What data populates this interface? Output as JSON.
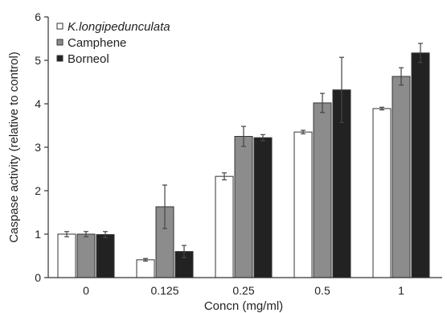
{
  "chart_data": {
    "type": "bar",
    "xlabel": "Concn (mg/ml)",
    "ylabel": "Caspase activity (relative to control)",
    "categories": [
      "0",
      "0.125",
      "0.25",
      "0.5",
      "1"
    ],
    "ylim": [
      0,
      6
    ],
    "yticks": [
      "0",
      "1",
      "2",
      "3",
      "4",
      "5",
      "6"
    ],
    "legend_position": "top-left",
    "grid": false,
    "series": [
      {
        "name": "K.longipedunculata",
        "italic": true,
        "color": "#ffffff",
        "values": [
          1.0,
          0.41,
          2.33,
          3.35,
          3.89
        ],
        "errors": [
          0.06,
          0.03,
          0.08,
          0.04,
          0.03
        ]
      },
      {
        "name": "Camphene",
        "italic": false,
        "color": "#8c8c8c",
        "values": [
          1.0,
          1.63,
          3.25,
          4.02,
          4.63
        ],
        "errors": [
          0.06,
          0.5,
          0.23,
          0.22,
          0.2
        ]
      },
      {
        "name": "Borneol",
        "italic": false,
        "color": "#222222",
        "values": [
          0.99,
          0.6,
          3.22,
          4.32,
          5.17
        ],
        "errors": [
          0.07,
          0.14,
          0.07,
          0.75,
          0.22
        ]
      }
    ]
  }
}
